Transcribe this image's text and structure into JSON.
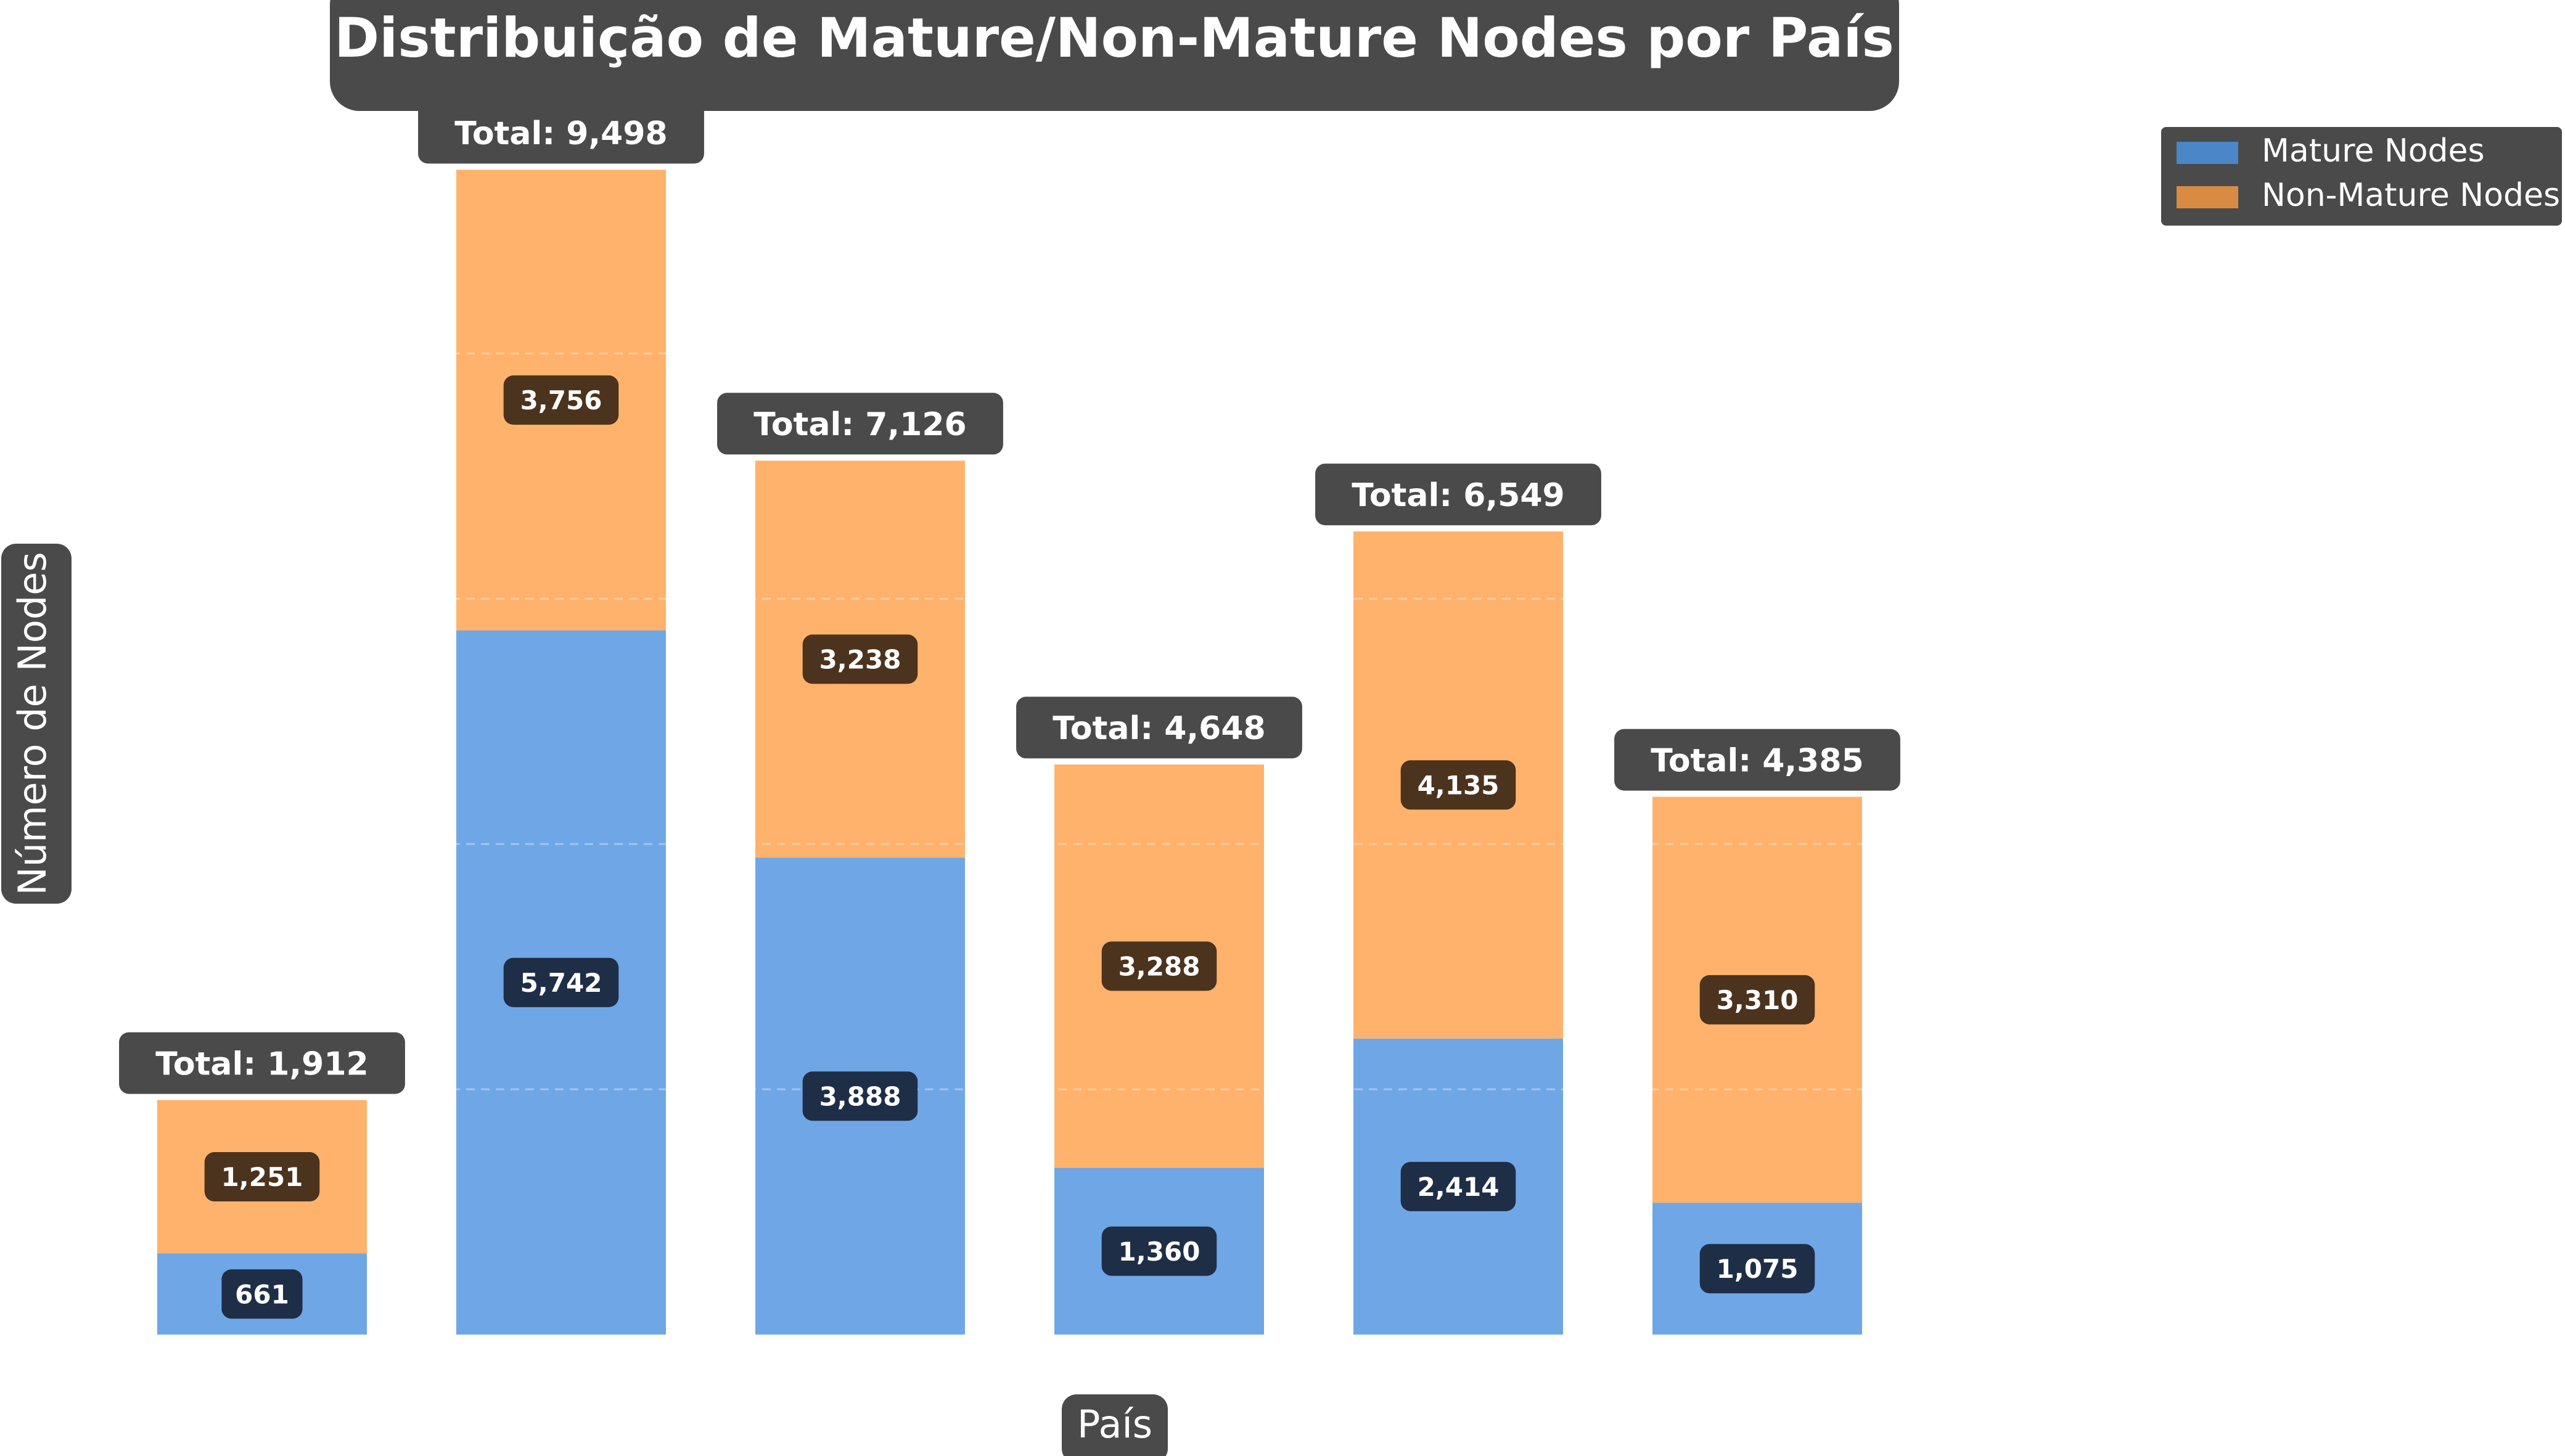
{
  "chart_data": {
    "type": "bar",
    "stacked": true,
    "title": "Distribuição de Mature/Non-Mature Nodes por País",
    "xlabel": "País",
    "ylabel": "Número de Nodes",
    "categories": [
      "",
      "",
      "",
      "",
      "",
      ""
    ],
    "series": [
      {
        "name": "Mature Nodes",
        "values": [
          661,
          5742,
          3888,
          1360,
          2414,
          1075
        ],
        "labels": [
          "661",
          "5,742",
          "3,888",
          "1,360",
          "2,414",
          "1,075"
        ]
      },
      {
        "name": "Non-Mature Nodes",
        "values": [
          1251,
          3756,
          3238,
          3288,
          4135,
          3310
        ],
        "labels": [
          "1,251",
          "3,756",
          "3,238",
          "3,288",
          "4,135",
          "3,310"
        ]
      }
    ],
    "totals": [
      "Total: 1,912",
      "Total: 9,498",
      "Total: 7,126",
      "Total: 4,648",
      "Total: 6,549",
      "Total: 4,385"
    ],
    "ylim": [
      0,
      9500
    ],
    "grid": "y-dashed",
    "ticks_visible": false,
    "legend": "top-right",
    "colors": {
      "mature_bar": "#6fa6e6",
      "nonmature_bar": "#ffb26b",
      "mature_legend": "#4a86c8",
      "nonmature_legend": "#d98b44",
      "mature_label_bg": "#1f2e47",
      "nonmature_label_bg": "#4b331e",
      "dark_box": "#4a4a4a",
      "label_text": "#ffffff"
    }
  }
}
